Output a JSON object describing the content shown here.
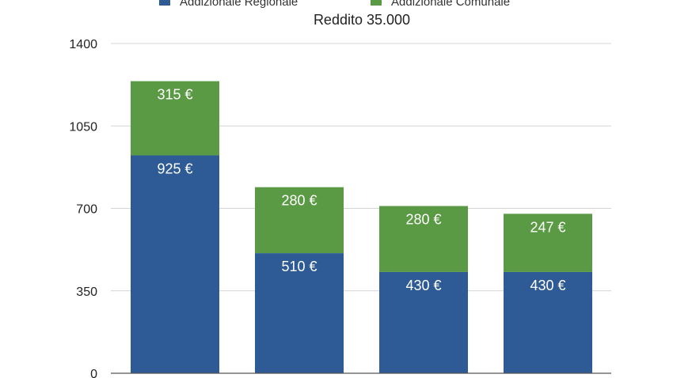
{
  "chart_data": {
    "type": "bar",
    "stacked": true,
    "title": "Reddito 35.000",
    "categories": [
      "",
      "",
      "",
      ""
    ],
    "series": [
      {
        "name": "Addizionale Regionale",
        "color": "#2e5b95",
        "values": [
          925,
          510,
          430,
          430
        ],
        "labels": [
          "925 €",
          "510 €",
          "430 €",
          "430 €"
        ]
      },
      {
        "name": "Addizionale Comunale",
        "color": "#5b9a45",
        "values": [
          315,
          280,
          280,
          247
        ],
        "labels": [
          "315 €",
          "280 €",
          "280 €",
          "247 €"
        ]
      }
    ],
    "yticks": [
      "0",
      "350",
      "700",
      "1050",
      "1400"
    ],
    "ylim": [
      0,
      1400
    ],
    "grid": true,
    "legend_position": "top"
  }
}
